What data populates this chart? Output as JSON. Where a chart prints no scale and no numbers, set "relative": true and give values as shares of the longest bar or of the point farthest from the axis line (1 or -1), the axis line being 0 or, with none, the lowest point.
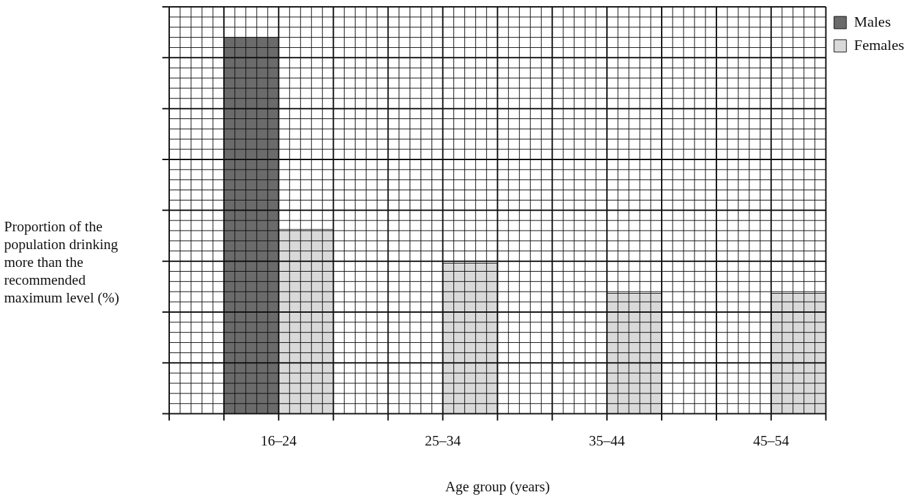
{
  "chart_data": {
    "type": "bar",
    "xlabel": "Age group (years)",
    "ylabel": "Proportion of the population drinking more than the recommended maximum level (%)",
    "categories": [
      "16–24",
      "25–34",
      "35–44",
      "45–54"
    ],
    "series": [
      {
        "name": "Males",
        "color": "#6b6b6b",
        "values": [
          1,
          null,
          null,
          null
        ]
      },
      {
        "name": "Females",
        "color": "#d9d9d9",
        "values": [
          0.49,
          0.4,
          0.32,
          0.32
        ]
      }
    ],
    "relative": true,
    "grid": true,
    "legend": "top right"
  }
}
